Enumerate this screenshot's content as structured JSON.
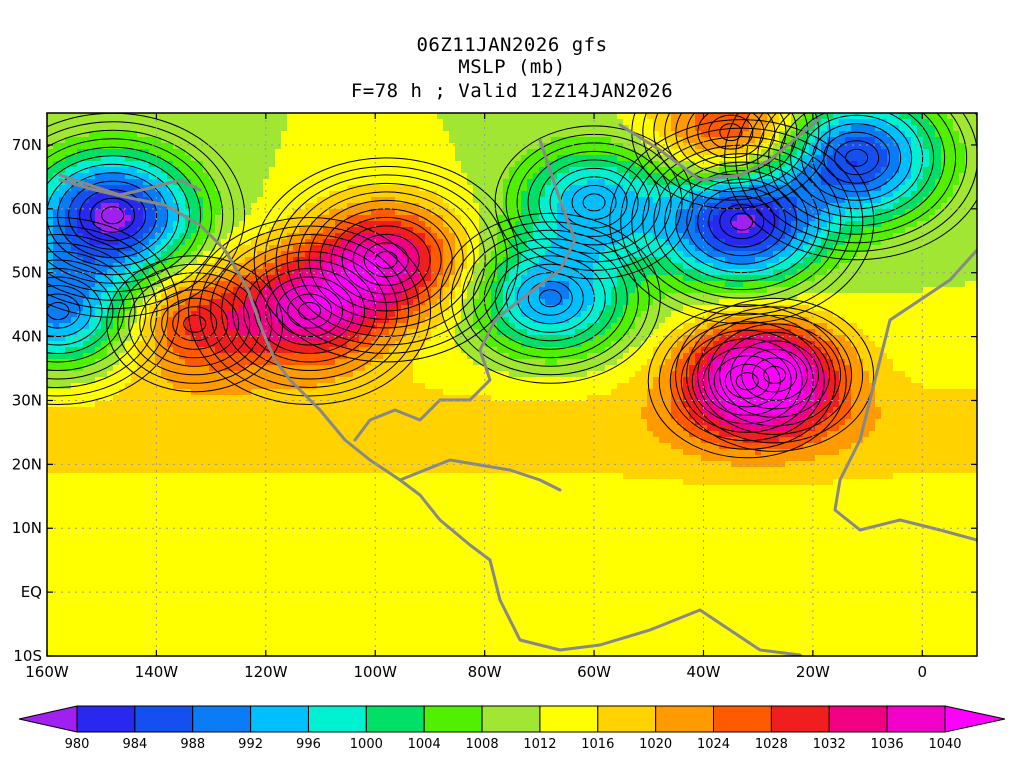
{
  "header": {
    "line1": "06Z11JAN2026 gfs",
    "line2": "MSLP (mb)",
    "line3": "F=78 h ; Valid 12Z14JAN2026"
  },
  "map": {
    "lon_labels": [
      "160W",
      "140W",
      "120W",
      "100W",
      "80W",
      "60W",
      "40W",
      "20W",
      "0"
    ],
    "lat_labels": [
      "70N",
      "60N",
      "50N",
      "40N",
      "30N",
      "20N",
      "10N",
      "EQ",
      "10S"
    ],
    "lon_values": [
      -160,
      -140,
      -120,
      -100,
      -80,
      -60,
      -40,
      -20,
      0
    ],
    "lat_values": [
      70,
      60,
      50,
      40,
      30,
      20,
      10,
      0,
      -10
    ],
    "lon_range": [
      -160,
      10
    ],
    "lat_range": [
      -10,
      75
    ],
    "field_centers": [
      {
        "lon": -133,
        "lat": 42,
        "value": 1030
      },
      {
        "lon": -112,
        "lat": 44,
        "value": 1036
      },
      {
        "lon": -98,
        "lat": 52,
        "value": 1038
      },
      {
        "lon": -32,
        "lat": 33,
        "value": 1031
      },
      {
        "lon": -27,
        "lat": 34,
        "value": 1032
      },
      {
        "lon": -68,
        "lat": 46,
        "value": 994
      },
      {
        "lon": -148,
        "lat": 59,
        "value": 981
      },
      {
        "lon": -33,
        "lat": 58,
        "value": 981
      },
      {
        "lon": -12,
        "lat": 68,
        "value": 986
      },
      {
        "lon": -35,
        "lat": 72,
        "value": 1032
      },
      {
        "lon": -158,
        "lat": 44,
        "value": 992
      },
      {
        "lon": -60,
        "lat": 61,
        "value": 996
      }
    ]
  },
  "colorbar": {
    "labels": [
      "980",
      "984",
      "988",
      "992",
      "996",
      "1000",
      "1004",
      "1008",
      "1012",
      "1016",
      "1020",
      "1024",
      "1028",
      "1032",
      "1036",
      "1040"
    ],
    "levels": [
      980,
      984,
      988,
      992,
      996,
      1000,
      1004,
      1008,
      1012,
      1016,
      1020,
      1024,
      1028,
      1032,
      1036,
      1040
    ],
    "colors": [
      "#a020f0",
      "#2828f0",
      "#1450f0",
      "#0a7cf5",
      "#00bfff",
      "#00f0d2",
      "#00e066",
      "#50f000",
      "#a0e632",
      "#ffff00",
      "#ffd200",
      "#ff9b00",
      "#ff5a00",
      "#f01e1e",
      "#f00082",
      "#f000c8",
      "#ff00ff"
    ],
    "coast_color": "#888888",
    "contour_color": "#000000"
  }
}
